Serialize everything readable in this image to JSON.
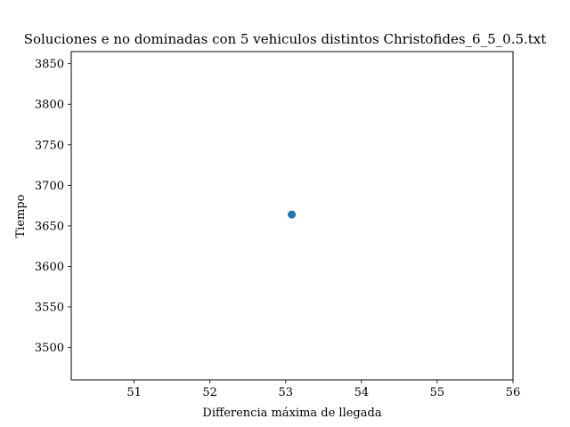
{
  "chart_data": {
    "type": "scatter",
    "title": "Soluciones e no dominadas con 5 vehiculos distintos Christofides_6_5_0.5.txt",
    "xlabel": "Differencia máxima de llegada",
    "ylabel": "Tiempo",
    "xlim": [
      50.17,
      56.0
    ],
    "ylim": [
      3460,
      3865
    ],
    "xticks": [
      51,
      52,
      53,
      54,
      55,
      56
    ],
    "yticks": [
      3500,
      3550,
      3600,
      3650,
      3700,
      3750,
      3800,
      3850
    ],
    "grid": false,
    "series": [
      {
        "color": "#1f77b4",
        "points": [
          {
            "x": 53.08,
            "y": 3664
          }
        ]
      }
    ]
  }
}
